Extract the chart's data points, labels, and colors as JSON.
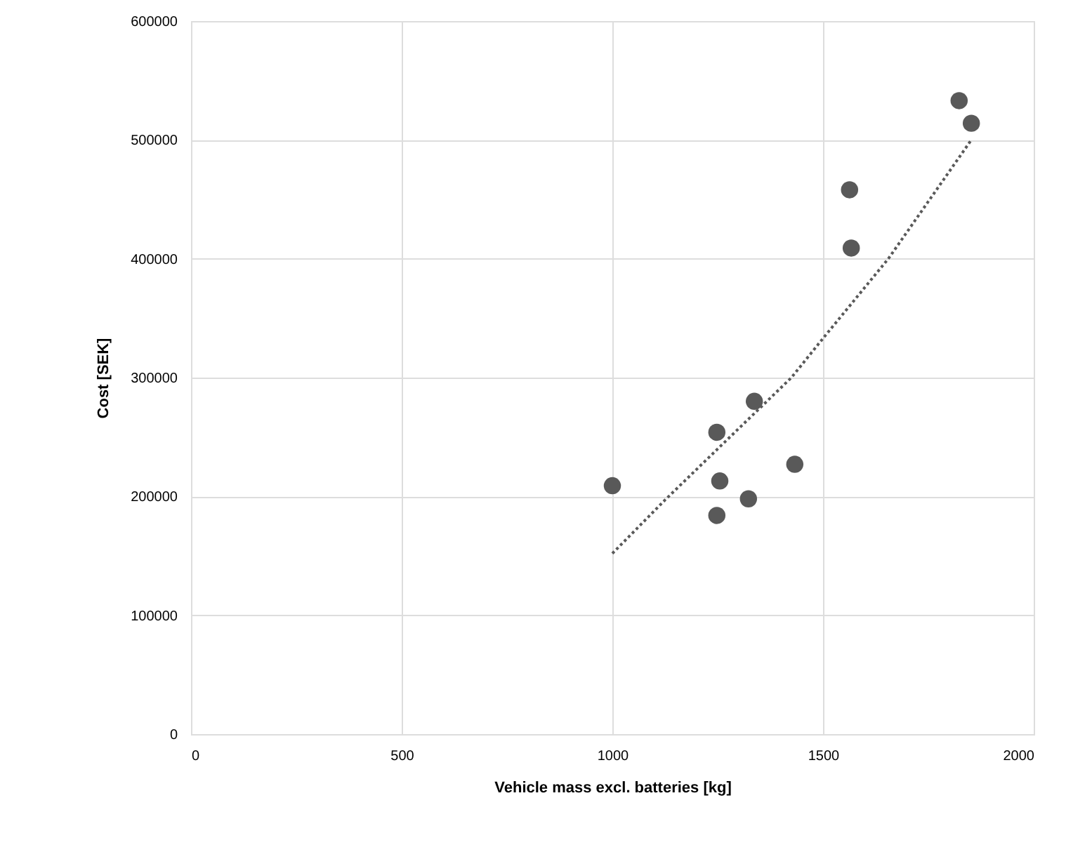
{
  "chart_data": {
    "type": "scatter",
    "xlabel": "Vehicle mass excl. batteries [kg]",
    "ylabel": "Cost [SEK]",
    "xlim": [
      0,
      2000
    ],
    "xticks": [
      0,
      500,
      1000,
      1500,
      2000
    ],
    "ylim": [
      0,
      600000
    ],
    "yticks": [
      0,
      100000,
      200000,
      300000,
      400000,
      500000,
      600000
    ],
    "grid": true,
    "series": [
      {
        "color": "#595959",
        "marker": "circle",
        "x": [
          1000,
          1248,
          1255,
          1248,
          1337,
          1323,
          1433,
          1563,
          1567,
          1823,
          1852
        ],
        "values": [
          209000,
          254000,
          213000,
          184000,
          280000,
          198000,
          227000,
          458000,
          409000,
          533000,
          514000
        ]
      },
      {
        "type": "line",
        "color": "#595959",
        "marker": "none",
        "line_style": "dotted",
        "x": [
          1000,
          1125,
          1250,
          1425,
          1500,
          1655,
          1852
        ],
        "values": [
          152000,
          197000,
          240000,
          300000,
          333000,
          400000,
          500000
        ]
      }
    ]
  }
}
